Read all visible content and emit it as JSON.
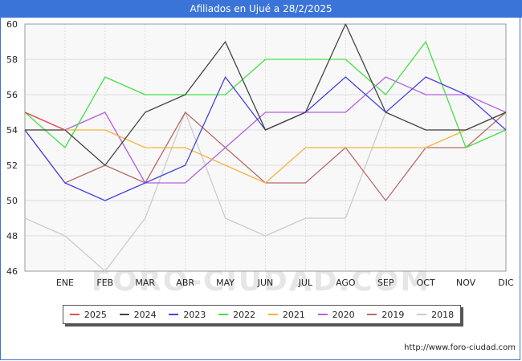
{
  "chart_data": {
    "type": "line",
    "title": "Afiliados en Ujué a 28/2/2025",
    "categories": [
      "",
      "ENE",
      "FEB",
      "MAR",
      "ABR",
      "MAY",
      "JUN",
      "JUL",
      "AGO",
      "SEP",
      "OCT",
      "NOV",
      "DIC"
    ],
    "ylim": [
      46,
      60
    ],
    "yticks": [
      46,
      48,
      50,
      52,
      54,
      56,
      58,
      60
    ],
    "grid": true,
    "legend_position": "bottom",
    "series": [
      {
        "name": "2018",
        "color": "#cccccc",
        "values": [
          49,
          48,
          46,
          49,
          55,
          49,
          48,
          49,
          49,
          55,
          54,
          54,
          54
        ]
      },
      {
        "name": "2019",
        "color": "#b96a6a",
        "values": [
          54,
          51,
          52,
          51,
          55,
          53,
          51,
          51,
          53,
          50,
          53,
          53,
          55
        ]
      },
      {
        "name": "2020",
        "color": "#b460e0",
        "values": [
          55,
          54,
          55,
          51,
          51,
          53,
          55,
          55,
          55,
          57,
          56,
          56,
          55
        ]
      },
      {
        "name": "2021",
        "color": "#f4b440",
        "values": [
          54,
          54,
          54,
          53,
          53,
          52,
          51,
          53,
          53,
          53,
          53,
          54,
          55
        ]
      },
      {
        "name": "2022",
        "color": "#44e044",
        "values": [
          55,
          53,
          57,
          56,
          56,
          56,
          58,
          58,
          58,
          56,
          59,
          53,
          54
        ]
      },
      {
        "name": "2023",
        "color": "#4444e0",
        "values": [
          54,
          51,
          50,
          51,
          52,
          57,
          54,
          55,
          57,
          55,
          57,
          56,
          54
        ]
      },
      {
        "name": "2024",
        "color": "#444444",
        "values": [
          54,
          54,
          52,
          55,
          56,
          59,
          54,
          55,
          60,
          55,
          54,
          54,
          55
        ]
      },
      {
        "name": "2025",
        "color": "#e05050",
        "values": [
          55,
          54,
          null,
          null,
          null,
          null,
          null,
          null,
          null,
          null,
          null,
          null,
          null
        ]
      }
    ]
  },
  "legend_order": [
    "2025",
    "2024",
    "2023",
    "2022",
    "2021",
    "2020",
    "2019",
    "2018"
  ],
  "watermark": "FORO-CIUDAD.COM",
  "source": "http://www.foro-ciudad.com"
}
